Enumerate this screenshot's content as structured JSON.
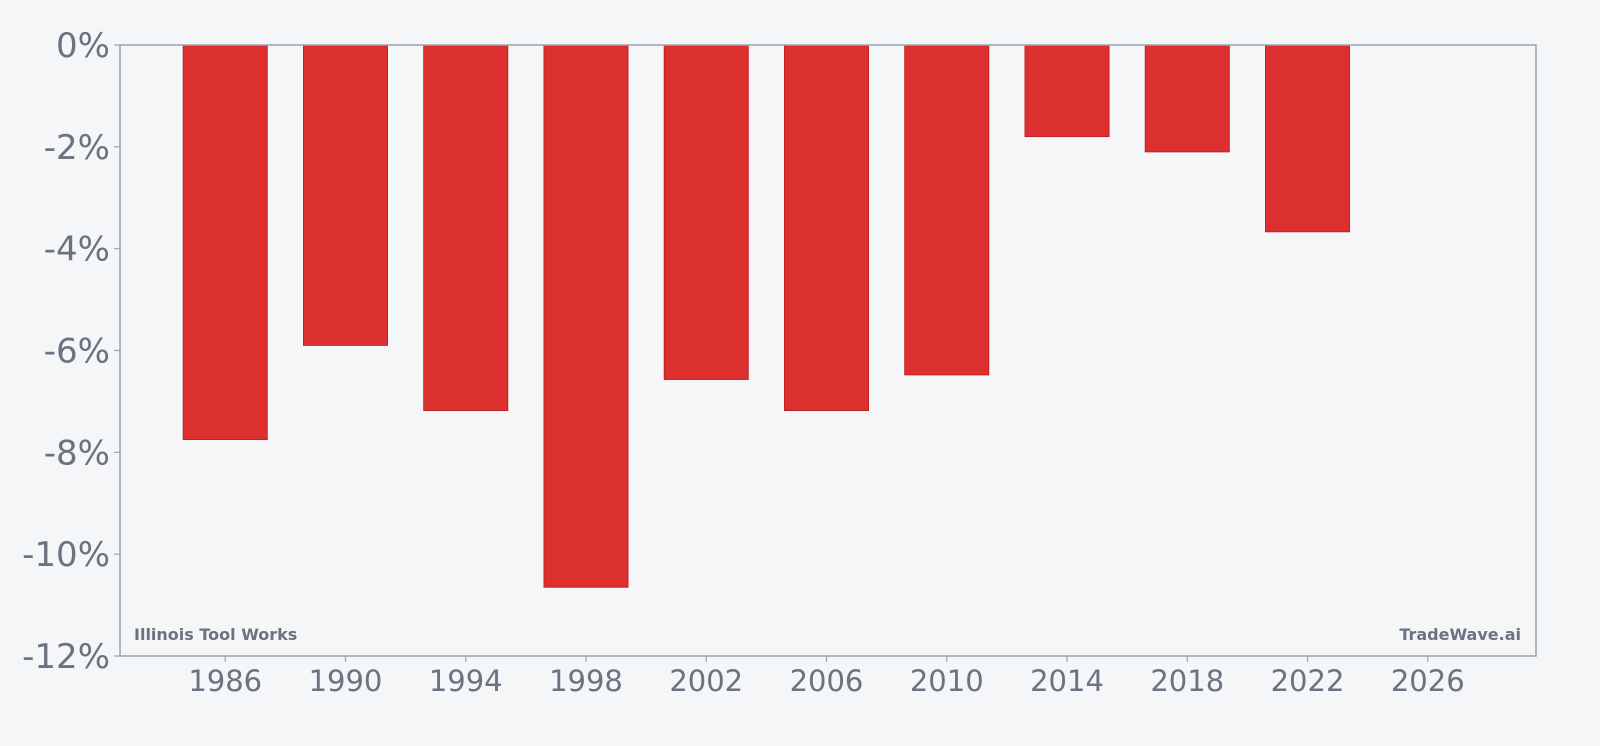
{
  "chart_data": {
    "type": "bar",
    "x": [
      1986,
      1990,
      1994,
      1998,
      2002,
      2006,
      2010,
      2014,
      2018,
      2022
    ],
    "values": [
      -7.75,
      -5.9,
      -7.18,
      -10.65,
      -6.57,
      -7.18,
      -6.48,
      -1.8,
      -2.1,
      -3.67
    ],
    "bar_color": "#dc3030",
    "xlim": [
      1982.5,
      2029.6
    ],
    "ylim": [
      -12,
      0
    ],
    "yticks": [
      0,
      -2,
      -4,
      -6,
      -8,
      -10,
      -12
    ],
    "ytick_labels": [
      "0%",
      "-2%",
      "-4%",
      "-6%",
      "-8%",
      "-10%",
      "-12%"
    ],
    "xticks": [
      1986,
      1990,
      1994,
      1998,
      2002,
      2006,
      2010,
      2014,
      2018,
      2022,
      2026
    ],
    "xtick_labels": [
      "1986",
      "1990",
      "1994",
      "1998",
      "2002",
      "2006",
      "2010",
      "2014",
      "2018",
      "2022",
      "2026"
    ],
    "grid": false
  },
  "watermark_left": "Illinois Tool Works",
  "watermark_right": "TradeWave.ai",
  "colors": {
    "background": "#f4f6f8",
    "axis": "#9ca3af",
    "text": "#6b7280",
    "bar": "#dc3030"
  }
}
